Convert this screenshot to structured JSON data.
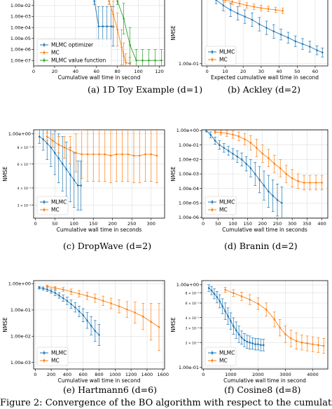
{
  "figure_caption": "Figure 2: Convergence of the BO algorithm with respect to the cumulative wall",
  "colors": {
    "mlmc": "#1f77b4",
    "mc": "#ff7f0e",
    "value_function": "#2ca02c",
    "grid": "#dddddd",
    "frame": "#000000"
  },
  "chart_data": [
    {
      "type": "line",
      "caption": "(a) 1D Toy Example (d=1)",
      "xlabel": "Cumulative wall time in second",
      "ylabel": "",
      "xlim": [
        0,
        125
      ],
      "ylim_log10": [
        -7.5,
        -1.5
      ],
      "xticks": [
        0,
        20,
        40,
        60,
        80,
        100,
        120
      ],
      "xtick_labels": [
        "0",
        "20",
        "40",
        "60",
        "80",
        "100",
        "120"
      ],
      "yticks_log10": [
        -2,
        -3,
        -4,
        -5,
        -6,
        -7
      ],
      "ytick_labels": [
        "1.00e-02",
        "1.00e-03",
        "1.00e-04",
        "1.00e-05",
        "1.00e-06",
        "1.00e-07"
      ],
      "legend": "upper-left",
      "series": [
        {
          "name": "MLMC optimizer",
          "color": "#1f77b4",
          "x": [
            58,
            62,
            66,
            70,
            74,
            76
          ],
          "log10y": [
            -1.6,
            -3.9,
            -3.9,
            -3.9,
            -3.9,
            -3.9
          ],
          "err": [
            0.3,
            1.8,
            1.8,
            1.8,
            1.8,
            1.8
          ]
        },
        {
          "name": "MC",
          "color": "#ff7f0e",
          "x": [
            72,
            76,
            80,
            84,
            86,
            88,
            92
          ],
          "log10y": [
            -1.6,
            -2.8,
            -4.2,
            -5.8,
            -6.6,
            -7.2,
            -7.3
          ],
          "err": [
            0.3,
            1.2,
            1.5,
            1.6,
            1.2,
            0.8,
            0.6
          ]
        },
        {
          "name": "MLMC value function",
          "color": "#2ca02c",
          "x": [
            80,
            86,
            92,
            98,
            104,
            110,
            116,
            122
          ],
          "log10y": [
            -1.6,
            -3.2,
            -5.6,
            -7.0,
            -7.0,
            -7.0,
            -7.0,
            -7.0
          ],
          "err": [
            0.3,
            1.4,
            1.6,
            1.0,
            1.0,
            1.0,
            1.0,
            1.0
          ]
        }
      ]
    },
    {
      "type": "line",
      "caption": "(b) Ackley (d=2)",
      "xlabel": "Expected cumulative wall time in second",
      "ylabel": "NMSE",
      "xlim": [
        -3,
        67
      ],
      "ylim_log10": [
        -1.05,
        0.42
      ],
      "xticks": [
        0,
        10,
        20,
        30,
        40,
        50,
        60
      ],
      "xtick_labels": [
        "0",
        "10",
        "20",
        "30",
        "40",
        "50",
        "60"
      ],
      "yticks_log10": [
        -1
      ],
      "ytick_labels": [
        "1.00e-01"
      ],
      "legend": "center-left",
      "series": [
        {
          "name": "MLMC",
          "color": "#1f77b4",
          "x": [
            5,
            9,
            13,
            17,
            21,
            25,
            29,
            33,
            37,
            41,
            45,
            49,
            53,
            57,
            61,
            64
          ],
          "log10y": [
            0.42,
            0.3,
            0.2,
            0.12,
            0.05,
            -0.02,
            -0.12,
            -0.2,
            -0.28,
            -0.35,
            -0.42,
            -0.5,
            -0.56,
            -0.62,
            -0.7,
            -0.75
          ],
          "err": [
            0.08,
            0.12,
            0.15,
            0.15,
            0.15,
            0.15,
            0.15,
            0.15,
            0.15,
            0.12,
            0.12,
            0.12,
            0.12,
            0.12,
            0.1,
            0.1
          ]
        },
        {
          "name": "MC",
          "color": "#ff7f0e",
          "x": [
            10,
            14,
            18,
            22,
            26,
            30,
            34,
            38,
            42
          ],
          "log10y": [
            0.42,
            0.38,
            0.34,
            0.3,
            0.27,
            0.24,
            0.22,
            0.2,
            0.18
          ],
          "err": [
            0.05,
            0.06,
            0.06,
            0.06,
            0.06,
            0.06,
            0.06,
            0.06,
            0.06
          ]
        }
      ]
    },
    {
      "type": "line",
      "caption": "(c) DropWave (d=2)",
      "xlabel": "Cumulative wall time in seconds",
      "ylabel": "NMSE",
      "xlim": [
        -5,
        335
      ],
      "ylim_log10": [
        -0.62,
        0.03
      ],
      "xticks": [
        0,
        50,
        100,
        150,
        200,
        250,
        300
      ],
      "xtick_labels": [
        "0",
        "50",
        "100",
        "150",
        "200",
        "250",
        "300"
      ],
      "yticks_log10": [
        0,
        -0.0969,
        -0.2218,
        -0.3979,
        -0.5229
      ],
      "ytick_labels": [
        "1.00e+00",
        "8 × 10⁻¹",
        "6 × 10⁻¹",
        "4 × 10⁻¹",
        "3 × 10⁻¹"
      ],
      "legend": "lower-left",
      "series": [
        {
          "name": "MLMC",
          "color": "#1f77b4",
          "x": [
            10,
            20,
            30,
            40,
            50,
            60,
            70,
            80,
            90,
            100,
            110,
            118
          ],
          "log10y": [
            -0.02,
            -0.04,
            -0.07,
            -0.1,
            -0.14,
            -0.18,
            -0.22,
            -0.26,
            -0.3,
            -0.34,
            -0.38,
            -0.38
          ],
          "err": [
            0.05,
            0.08,
            0.12,
            0.14,
            0.16,
            0.18,
            0.2,
            0.2,
            0.2,
            0.2,
            0.18,
            0.18
          ]
        },
        {
          "name": "MC",
          "color": "#ff7f0e",
          "x": [
            30,
            45,
            60,
            75,
            90,
            105,
            120,
            135,
            150,
            165,
            180,
            195,
            210,
            225,
            240,
            255,
            270,
            285,
            300,
            315
          ],
          "log10y": [
            -0.02,
            -0.05,
            -0.08,
            -0.1,
            -0.12,
            -0.14,
            -0.15,
            -0.15,
            -0.15,
            -0.15,
            -0.15,
            -0.16,
            -0.15,
            -0.15,
            -0.15,
            -0.16,
            -0.16,
            -0.15,
            -0.15,
            -0.16
          ],
          "err": [
            0.03,
            0.05,
            0.06,
            0.08,
            0.1,
            0.14,
            0.18,
            0.2,
            0.2,
            0.2,
            0.2,
            0.2,
            0.2,
            0.2,
            0.2,
            0.2,
            0.2,
            0.2,
            0.2,
            0.2
          ]
        }
      ]
    },
    {
      "type": "line",
      "caption": "(d) Branin (d=2)",
      "xlabel": "Cumulative wall time in seconds",
      "ylabel": "NMSE",
      "xlim": [
        -5,
        420
      ],
      "ylim_log10": [
        -6.05,
        0.05
      ],
      "xticks": [
        0,
        50,
        100,
        150,
        200,
        250,
        300,
        350,
        400
      ],
      "xtick_labels": [
        "0",
        "50",
        "100",
        "150",
        "200",
        "250",
        "300",
        "350",
        "400"
      ],
      "yticks_log10": [
        0,
        -1,
        -2,
        -3,
        -4,
        -5,
        -6
      ],
      "ytick_labels": [
        "1.00e+00",
        "1.00e-01",
        "1.00e-02",
        "1.00e-03",
        "1.00e-04",
        "1.00e-05",
        "1.00e-06"
      ],
      "legend": "lower-left",
      "series": [
        {
          "name": "MLMC",
          "color": "#1f77b4",
          "x": [
            10,
            25,
            40,
            55,
            70,
            85,
            100,
            115,
            130,
            145,
            160,
            175,
            190,
            205,
            220,
            235,
            250,
            265
          ],
          "log10y": [
            0,
            -0.3,
            -0.7,
            -1.0,
            -1.2,
            -1.4,
            -1.6,
            -1.8,
            -2.0,
            -2.3,
            -2.6,
            -3.0,
            -3.4,
            -3.8,
            -4.2,
            -4.5,
            -4.8,
            -5.0
          ],
          "err": [
            0.1,
            0.2,
            0.25,
            0.3,
            0.3,
            0.3,
            0.35,
            0.4,
            0.45,
            0.5,
            0.6,
            0.8,
            0.9,
            1.0,
            1.1,
            1.1,
            1.1,
            1.1
          ]
        },
        {
          "name": "MC",
          "color": "#ff7f0e",
          "x": [
            40,
            60,
            80,
            100,
            120,
            140,
            160,
            180,
            200,
            220,
            240,
            260,
            280,
            300,
            320,
            340,
            360,
            380,
            400
          ],
          "log10y": [
            -0.1,
            -0.15,
            -0.2,
            -0.28,
            -0.4,
            -0.6,
            -0.85,
            -1.2,
            -1.6,
            -1.9,
            -2.3,
            -2.6,
            -3.0,
            -3.3,
            -3.5,
            -3.6,
            -3.6,
            -3.6,
            -3.6
          ],
          "err": [
            0.1,
            0.15,
            0.2,
            0.25,
            0.3,
            0.4,
            0.5,
            0.6,
            0.6,
            0.6,
            0.6,
            0.6,
            0.6,
            0.6,
            0.5,
            0.5,
            0.5,
            0.5,
            0.5
          ]
        }
      ]
    },
    {
      "type": "line",
      "caption": "(e) Hartmann6 (d=6)",
      "xlabel": "Cumulative wall time in second",
      "ylabel": "NMSE",
      "xlim": [
        -20,
        1620
      ],
      "ylim_log10": [
        -3.25,
        0.12
      ],
      "xticks": [
        0,
        200,
        400,
        600,
        800,
        1000,
        1200,
        1400,
        1600
      ],
      "xtick_labels": [
        "0",
        "200",
        "400",
        "600",
        "800",
        "1000",
        "1200",
        "1400",
        "1600"
      ],
      "yticks_log10": [
        0,
        -1,
        -2,
        -3
      ],
      "ytick_labels": [
        "1.00e+00",
        "1.00e-01",
        "1.00e-02",
        "1.00e-03"
      ],
      "legend": "lower-left",
      "series": [
        {
          "name": "MLMC",
          "color": "#1f77b4",
          "x": [
            50,
            100,
            150,
            200,
            250,
            300,
            350,
            400,
            450,
            500,
            550,
            600,
            650,
            700,
            750,
            800
          ],
          "log10y": [
            -0.15,
            -0.18,
            -0.22,
            -0.28,
            -0.35,
            -0.45,
            -0.55,
            -0.65,
            -0.78,
            -0.9,
            -1.05,
            -1.2,
            -1.4,
            -1.6,
            -1.8,
            -1.95
          ],
          "err": [
            0.05,
            0.06,
            0.07,
            0.08,
            0.1,
            0.1,
            0.12,
            0.14,
            0.16,
            0.18,
            0.2,
            0.25,
            0.3,
            0.35,
            0.4,
            0.4
          ]
        },
        {
          "name": "MC",
          "color": "#ff7f0e",
          "x": [
            150,
            250,
            350,
            450,
            550,
            650,
            750,
            850,
            950,
            1050,
            1150,
            1250,
            1350,
            1450,
            1550
          ],
          "log10y": [
            -0.1,
            -0.16,
            -0.22,
            -0.3,
            -0.38,
            -0.46,
            -0.55,
            -0.65,
            -0.75,
            -0.86,
            -0.98,
            -1.1,
            -1.25,
            -1.45,
            -1.65
          ],
          "err": [
            0.05,
            0.06,
            0.08,
            0.1,
            0.12,
            0.14,
            0.16,
            0.18,
            0.2,
            0.25,
            0.3,
            0.4,
            0.5,
            0.7,
            0.9
          ]
        }
      ]
    },
    {
      "type": "line",
      "caption": "(f) Cosine8 (d=8)",
      "xlabel": "Cumulative wall time in second",
      "ylabel": "NMSE",
      "xlim": [
        -60,
        4550
      ],
      "ylim_log10": [
        -1.02,
        0.05
      ],
      "xticks": [
        0,
        1000,
        2000,
        3000,
        4000
      ],
      "xtick_labels": [
        "0",
        "1000",
        "2000",
        "3000",
        "4000"
      ],
      "yticks_log10": [
        0,
        -0.0969,
        -0.2218,
        -0.3979,
        -0.5229,
        -0.699,
        -1
      ],
      "ytick_labels": [
        "1.00e+00",
        "8 × 10⁻¹",
        "6 × 10⁻¹",
        "4 × 10⁻¹",
        "3 × 10⁻¹",
        "2 × 10⁻¹",
        "1.00e-01"
      ],
      "legend": "lower-left",
      "series": [
        {
          "name": "MLMC",
          "color": "#1f77b4",
          "x": [
            200,
            300,
            400,
            500,
            600,
            700,
            800,
            900,
            1000,
            1100,
            1200,
            1300,
            1400,
            1500,
            1600,
            1700,
            1800,
            1900,
            2000,
            2100,
            2200
          ],
          "log10y": [
            -0.04,
            -0.07,
            -0.11,
            -0.15,
            -0.2,
            -0.26,
            -0.32,
            -0.38,
            -0.44,
            -0.5,
            -0.55,
            -0.6,
            -0.64,
            -0.67,
            -0.69,
            -0.7,
            -0.71,
            -0.72,
            -0.72,
            -0.73,
            -0.73
          ],
          "err": [
            0.04,
            0.05,
            0.06,
            0.07,
            0.08,
            0.09,
            0.1,
            0.1,
            0.1,
            0.1,
            0.1,
            0.1,
            0.08,
            0.08,
            0.08,
            0.08,
            0.07,
            0.07,
            0.07,
            0.07,
            0.07
          ]
        },
        {
          "name": "MC",
          "color": "#ff7f0e",
          "x": [
            800,
            1100,
            1400,
            1700,
            2000,
            2300,
            2600,
            2800,
            3000,
            3200,
            3400,
            3600,
            3800,
            4000,
            4200,
            4400
          ],
          "log10y": [
            -0.06,
            -0.1,
            -0.14,
            -0.18,
            -0.23,
            -0.3,
            -0.42,
            -0.52,
            -0.6,
            -0.65,
            -0.68,
            -0.7,
            -0.71,
            -0.72,
            -0.73,
            -0.74
          ],
          "err": [
            0.03,
            0.04,
            0.05,
            0.06,
            0.07,
            0.08,
            0.09,
            0.1,
            0.1,
            0.1,
            0.1,
            0.09,
            0.09,
            0.09,
            0.09,
            0.09
          ]
        }
      ]
    }
  ]
}
